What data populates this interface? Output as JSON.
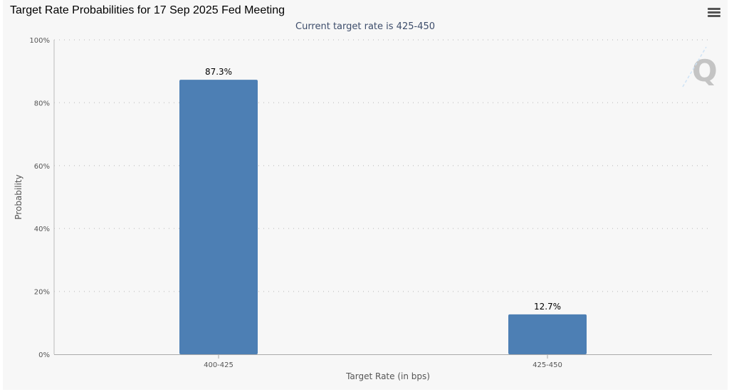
{
  "chart_data": {
    "type": "bar",
    "title": "Target Rate Probabilities for 17 Sep 2025 Fed Meeting",
    "subtitle": "Current target rate is 425-450",
    "categories": [
      "400-425",
      "425-450"
    ],
    "values": [
      87.3,
      12.7
    ],
    "data_labels": [
      "87.3%",
      "12.7%"
    ],
    "xlabel": "Target Rate (in bps)",
    "ylabel": "Probability",
    "ylim": [
      0,
      100
    ],
    "yticks": [
      "0%",
      "20%",
      "40%",
      "60%",
      "80%",
      "100%"
    ],
    "grid": "horizontal dotted",
    "bar_color": "#4d7fb4"
  },
  "menu_icon": "hamburger-menu-icon"
}
